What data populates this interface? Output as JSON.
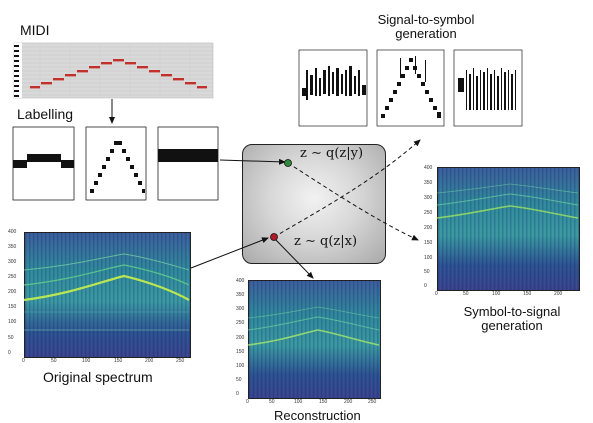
{
  "labels": {
    "midi": "MIDI",
    "labelling": "Labelling",
    "signal_to_symbol": "Signal-to-symbol\ngeneration",
    "symbol_to_signal": "Symbol-to-signal\ngeneration",
    "original_spectrum": "Original spectrum",
    "reconstruction": "Reconstruction"
  },
  "latent": {
    "posterior_y": "z ∼ q(z|y)",
    "posterior_x": "z ∼ q(z|x)"
  },
  "colors": {
    "midi_note": "#c0322b",
    "arrow": "#111111",
    "latent_point_green": "#2e8b3a",
    "latent_point_red": "#b2182b"
  },
  "axes": {
    "spectrum_y_ticks": [
      "0",
      "50",
      "100",
      "150",
      "200",
      "250",
      "300",
      "350",
      "400"
    ],
    "spectrum_x_ticks": [
      "0",
      "50",
      "100",
      "150",
      "200",
      "250"
    ],
    "recon_y_ticks": [
      "0",
      "50",
      "100",
      "150",
      "200",
      "250",
      "300",
      "350",
      "400"
    ],
    "recon_x_ticks": [
      "0",
      "50",
      "100",
      "150",
      "200",
      "250"
    ],
    "s2s_y_ticks": [
      "0",
      "50",
      "100",
      "150",
      "200",
      "250",
      "300",
      "350",
      "400"
    ],
    "s2s_x_ticks": [
      "0",
      "50",
      "100",
      "150",
      "200"
    ]
  }
}
